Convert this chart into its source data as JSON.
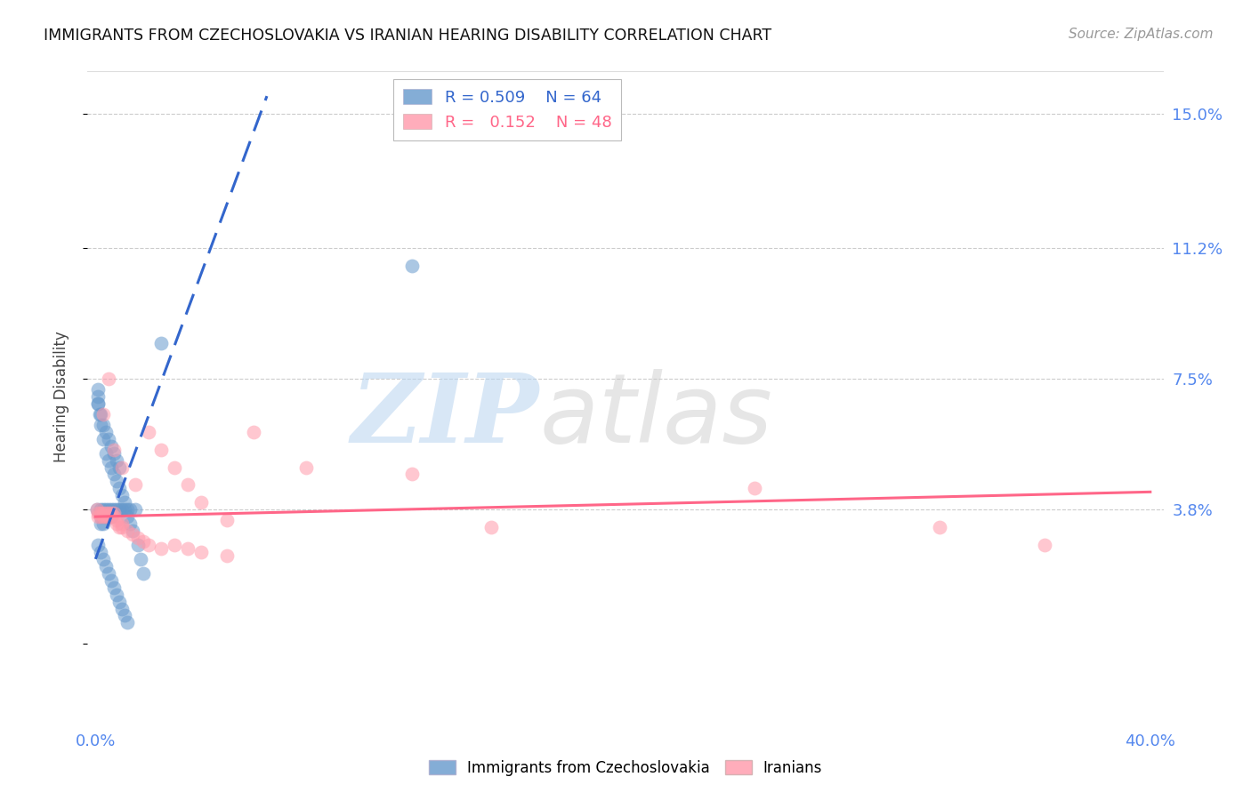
{
  "title": "IMMIGRANTS FROM CZECHOSLOVAKIA VS IRANIAN HEARING DISABILITY CORRELATION CHART",
  "source": "Source: ZipAtlas.com",
  "ylabel": "Hearing Disability",
  "yticks": [
    0.0,
    0.038,
    0.075,
    0.112,
    0.15
  ],
  "ytick_labels": [
    "",
    "3.8%",
    "7.5%",
    "11.2%",
    "15.0%"
  ],
  "xlim": [
    -0.003,
    0.405
  ],
  "ylim": [
    -0.022,
    0.162
  ],
  "blue_R": 0.509,
  "blue_N": 64,
  "pink_R": 0.152,
  "pink_N": 48,
  "blue_color": "#6699cc",
  "pink_color": "#ff99aa",
  "blue_line_color": "#3366cc",
  "pink_line_color": "#ff6688",
  "watermark_zip": "ZIP",
  "watermark_atlas": "atlas",
  "legend_label_blue": "Immigrants from Czechoslovakia",
  "legend_label_pink": "Iranians",
  "blue_x": [
    0.0005,
    0.001,
    0.001,
    0.0015,
    0.002,
    0.002,
    0.002,
    0.002,
    0.003,
    0.003,
    0.003,
    0.003,
    0.004,
    0.004,
    0.004,
    0.005,
    0.005,
    0.005,
    0.006,
    0.006,
    0.006,
    0.007,
    0.007,
    0.008,
    0.008,
    0.009,
    0.009,
    0.01,
    0.01,
    0.011,
    0.011,
    0.012,
    0.012,
    0.013,
    0.013,
    0.014,
    0.015,
    0.016,
    0.017,
    0.018,
    0.001,
    0.001,
    0.002,
    0.003,
    0.004,
    0.005,
    0.006,
    0.007,
    0.008,
    0.009,
    0.001,
    0.002,
    0.003,
    0.004,
    0.005,
    0.006,
    0.007,
    0.008,
    0.009,
    0.01,
    0.011,
    0.012,
    0.025,
    0.12
  ],
  "blue_y": [
    0.038,
    0.072,
    0.068,
    0.065,
    0.038,
    0.036,
    0.034,
    0.062,
    0.038,
    0.036,
    0.034,
    0.058,
    0.038,
    0.036,
    0.054,
    0.038,
    0.036,
    0.052,
    0.038,
    0.036,
    0.05,
    0.038,
    0.048,
    0.038,
    0.046,
    0.038,
    0.044,
    0.038,
    0.042,
    0.038,
    0.04,
    0.038,
    0.036,
    0.038,
    0.034,
    0.032,
    0.038,
    0.028,
    0.024,
    0.02,
    0.07,
    0.068,
    0.065,
    0.062,
    0.06,
    0.058,
    0.056,
    0.054,
    0.052,
    0.05,
    0.028,
    0.026,
    0.024,
    0.022,
    0.02,
    0.018,
    0.016,
    0.014,
    0.012,
    0.01,
    0.008,
    0.006,
    0.085,
    0.107
  ],
  "pink_x": [
    0.0005,
    0.001,
    0.001,
    0.002,
    0.002,
    0.003,
    0.003,
    0.004,
    0.004,
    0.005,
    0.005,
    0.006,
    0.006,
    0.007,
    0.007,
    0.008,
    0.008,
    0.009,
    0.01,
    0.01,
    0.012,
    0.014,
    0.016,
    0.018,
    0.02,
    0.025,
    0.03,
    0.035,
    0.04,
    0.05,
    0.003,
    0.005,
    0.007,
    0.01,
    0.015,
    0.02,
    0.025,
    0.03,
    0.035,
    0.04,
    0.05,
    0.15,
    0.25,
    0.32,
    0.36,
    0.12,
    0.06,
    0.08
  ],
  "pink_y": [
    0.038,
    0.037,
    0.036,
    0.037,
    0.036,
    0.037,
    0.036,
    0.037,
    0.036,
    0.037,
    0.036,
    0.037,
    0.036,
    0.037,
    0.036,
    0.035,
    0.034,
    0.033,
    0.034,
    0.033,
    0.032,
    0.031,
    0.03,
    0.029,
    0.028,
    0.027,
    0.028,
    0.027,
    0.026,
    0.025,
    0.065,
    0.075,
    0.055,
    0.05,
    0.045,
    0.06,
    0.055,
    0.05,
    0.045,
    0.04,
    0.035,
    0.033,
    0.044,
    0.033,
    0.028,
    0.048,
    0.06,
    0.05
  ],
  "blue_line_x0": 0.0,
  "blue_line_y0": 0.024,
  "blue_line_x1": 0.065,
  "blue_line_y1": 0.155,
  "pink_line_x0": 0.0,
  "pink_line_y0": 0.036,
  "pink_line_x1": 0.4,
  "pink_line_y1": 0.043
}
